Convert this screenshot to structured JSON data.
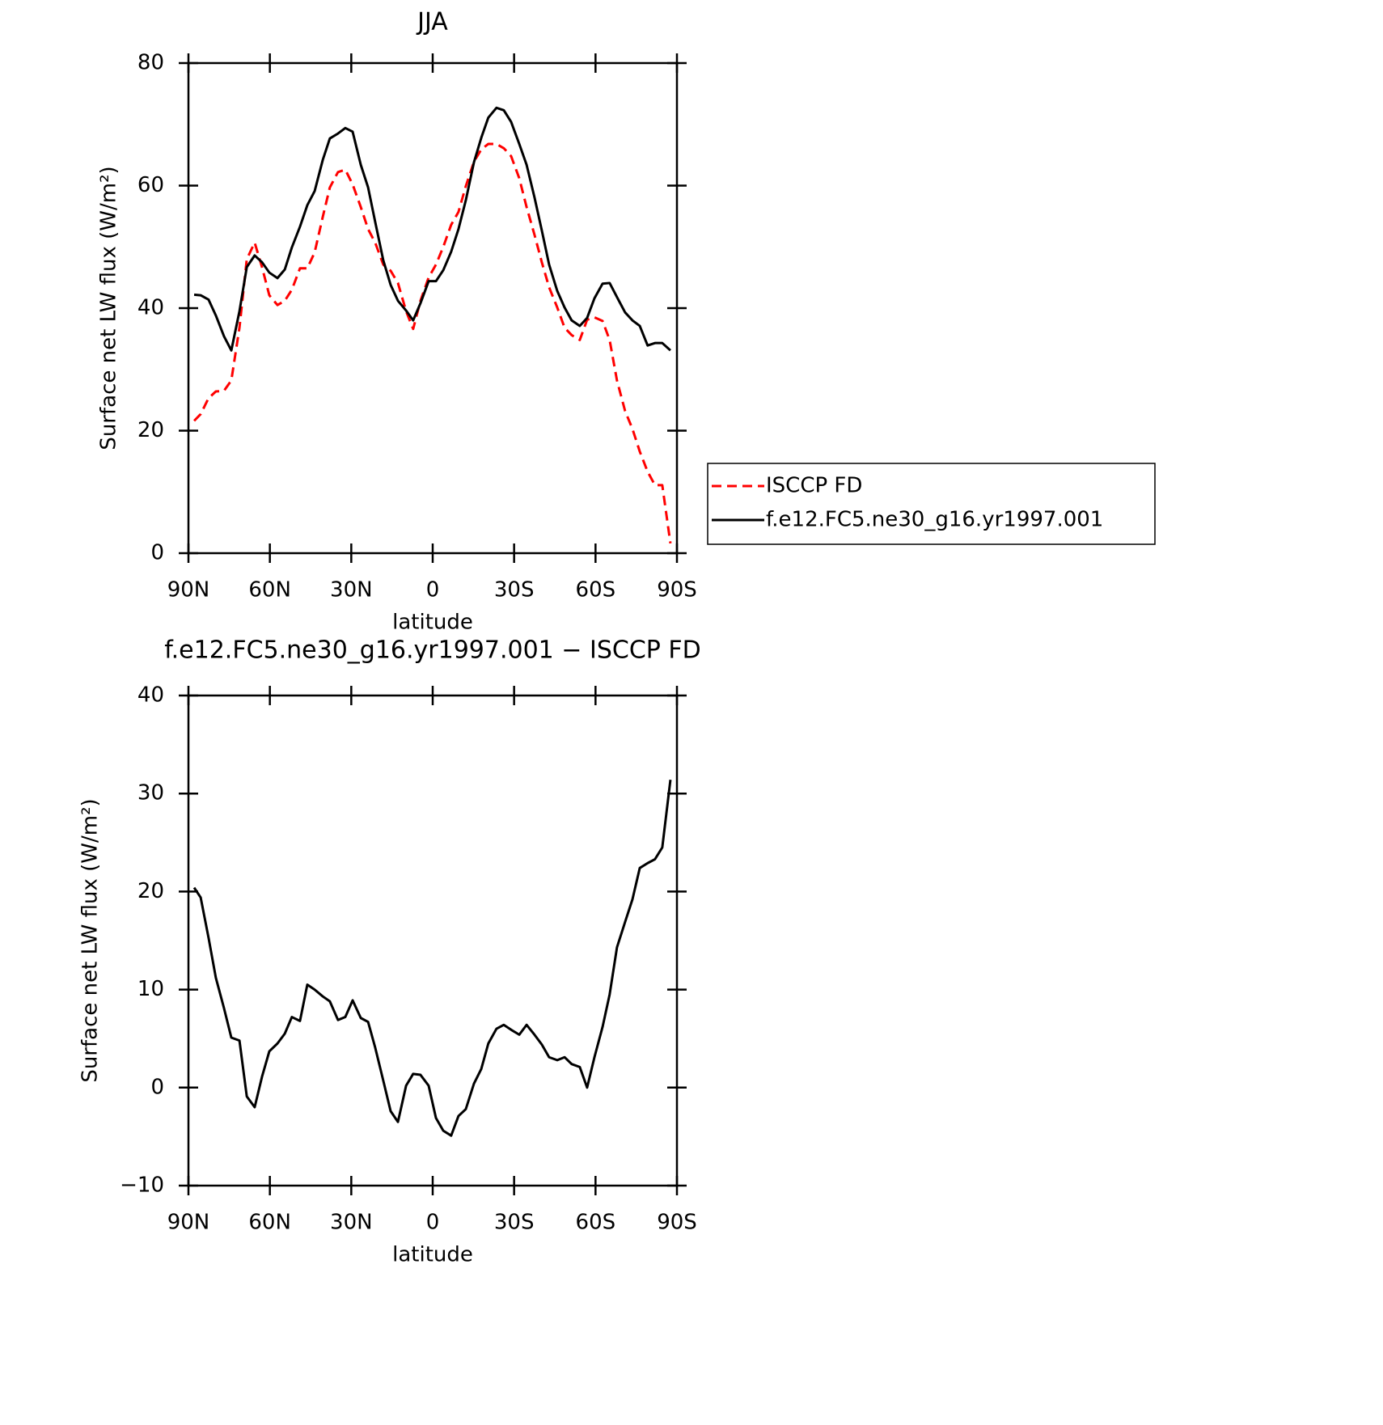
{
  "chart_data": [
    {
      "type": "line",
      "title": "JJA",
      "xlabel": "latitude",
      "ylabel": "Surface net LW flux (W/m²)",
      "xlim": [
        90,
        -90
      ],
      "xticks": [
        {
          "value": 90,
          "label": "90N"
        },
        {
          "value": 60,
          "label": "60N"
        },
        {
          "value": 30,
          "label": "30N"
        },
        0,
        {
          "value": -30,
          "label": "30S"
        },
        {
          "value": -60,
          "label": "60S"
        },
        {
          "value": -90,
          "label": "90S"
        }
      ],
      "ylim": [
        0,
        80
      ],
      "yticks": [
        0,
        20,
        40,
        60,
        80
      ],
      "legend": "outside right",
      "x": [
        87.9,
        85.5,
        82.6,
        79.9,
        76.9,
        74.2,
        71.2,
        68.5,
        65.6,
        62.9,
        60.2,
        57.2,
        54.5,
        51.9,
        48.9,
        46.2,
        43.5,
        40.5,
        37.9,
        34.9,
        32.2,
        29.5,
        26.5,
        23.8,
        21.2,
        18.2,
        15.5,
        12.8,
        9.8,
        7.2,
        4.5,
        1.5,
        -1.2,
        -3.9,
        -6.8,
        -9.5,
        -12.2,
        -15.2,
        -17.9,
        -20.5,
        -23.5,
        -26.2,
        -28.9,
        -31.9,
        -34.6,
        -37.5,
        -40.2,
        -42.9,
        -45.9,
        -48.6,
        -51.2,
        -54.2,
        -56.9,
        -59.6,
        -62.6,
        -65.2,
        -67.9,
        -70.9,
        -73.6,
        -76.3,
        -79.2,
        -81.9,
        -84.6,
        -87.6
      ],
      "series": [
        {
          "name": "ISCCP FD",
          "color": "#ff0000",
          "linestyle": "dashed",
          "values": [
            21.6,
            22.7,
            25.3,
            26.4,
            26.5,
            28.2,
            36.8,
            48.0,
            50.7,
            46.7,
            42.1,
            40.5,
            41.2,
            43.0,
            46.5,
            46.5,
            49.1,
            54.9,
            59.7,
            62.2,
            62.6,
            60.2,
            56.5,
            52.9,
            50.7,
            47.1,
            46.1,
            44.1,
            39.5,
            36.6,
            41.2,
            45.0,
            47.1,
            50.0,
            53.6,
            55.7,
            59.9,
            63.9,
            65.9,
            66.8,
            66.8,
            66.1,
            64.8,
            61.2,
            56.5,
            52.0,
            47.5,
            43.4,
            40.1,
            36.8,
            35.6,
            34.8,
            38.1,
            38.5,
            37.9,
            34.8,
            28.2,
            23.2,
            20.3,
            16.6,
            13.3,
            11.1,
            11.1,
            1.6
          ]
        },
        {
          "name": "f.e12.FC5.ne30_g16.yr1997.001",
          "color": "#000000",
          "linestyle": "solid",
          "values": [
            42.2,
            42.1,
            41.4,
            38.8,
            35.4,
            33.1,
            39.5,
            46.7,
            48.6,
            47.5,
            45.8,
            44.9,
            46.3,
            49.9,
            53.3,
            56.8,
            59.1,
            64.2,
            67.7,
            68.5,
            69.4,
            68.8,
            63.4,
            59.7,
            54.1,
            47.8,
            43.8,
            41.2,
            39.6,
            38.0,
            40.8,
            44.4,
            44.4,
            46.2,
            49.2,
            52.9,
            57.6,
            63.8,
            67.8,
            71.1,
            72.7,
            72.3,
            70.4,
            66.8,
            63.4,
            58.1,
            52.7,
            47.1,
            42.8,
            40.1,
            38.0,
            37.1,
            38.4,
            41.6,
            44.0,
            44.1,
            41.8,
            39.3,
            38.0,
            37.1,
            33.9,
            34.3,
            34.3,
            33.1
          ]
        }
      ]
    },
    {
      "type": "line",
      "title": "f.e12.FC5.ne30_g16.yr1997.001 − ISCCP FD",
      "xlabel": "latitude",
      "ylabel": "Surface net LW flux (W/m²)",
      "xlim": [
        90,
        -90
      ],
      "xticks": [
        {
          "value": 90,
          "label": "90N"
        },
        {
          "value": 60,
          "label": "60N"
        },
        {
          "value": 30,
          "label": "30N"
        },
        0,
        {
          "value": -30,
          "label": "30S"
        },
        {
          "value": -60,
          "label": "60S"
        },
        {
          "value": -90,
          "label": "90S"
        }
      ],
      "ylim": [
        -10,
        40
      ],
      "yticks": [
        {
          "value": -10,
          "label": "−10"
        },
        0,
        10,
        20,
        30,
        40
      ],
      "x": [
        87.9,
        85.5,
        82.6,
        79.9,
        76.9,
        74.2,
        71.2,
        68.5,
        65.6,
        62.9,
        60.2,
        57.2,
        54.5,
        51.9,
        48.9,
        46.2,
        43.5,
        40.5,
        37.9,
        34.9,
        32.2,
        29.5,
        26.5,
        23.8,
        21.2,
        18.2,
        15.5,
        12.8,
        9.8,
        7.2,
        4.5,
        1.5,
        -1.2,
        -3.9,
        -6.8,
        -9.5,
        -12.2,
        -15.2,
        -17.9,
        -20.5,
        -23.5,
        -26.2,
        -28.9,
        -31.9,
        -34.6,
        -37.5,
        -40.2,
        -42.9,
        -45.9,
        -48.6,
        -51.2,
        -54.2,
        -56.9,
        -59.6,
        -62.6,
        -65.2,
        -67.9,
        -70.9,
        -73.6,
        -76.3,
        -79.2,
        -81.9,
        -84.6,
        -87.6
      ],
      "series": [
        {
          "color": "#000000",
          "linestyle": "solid",
          "values": [
            20.4,
            19.4,
            15.3,
            11.2,
            8.1,
            5.1,
            4.8,
            -0.9,
            -2.0,
            1.1,
            3.7,
            4.5,
            5.5,
            7.2,
            6.8,
            10.5,
            10.0,
            9.3,
            8.8,
            6.9,
            7.2,
            8.9,
            7.1,
            6.7,
            4.1,
            0.7,
            -2.4,
            -3.5,
            0.2,
            1.4,
            1.3,
            0.2,
            -3.1,
            -4.4,
            -4.9,
            -2.9,
            -2.2,
            0.4,
            1.9,
            4.5,
            6.0,
            6.4,
            5.9,
            5.4,
            6.4,
            5.4,
            4.4,
            3.1,
            2.8,
            3.1,
            2.4,
            2.1,
            0,
            3.1,
            6.2,
            9.5,
            14.3,
            16.9,
            19.2,
            22.4,
            22.9,
            23.3,
            24.5,
            31.4
          ]
        }
      ]
    }
  ]
}
